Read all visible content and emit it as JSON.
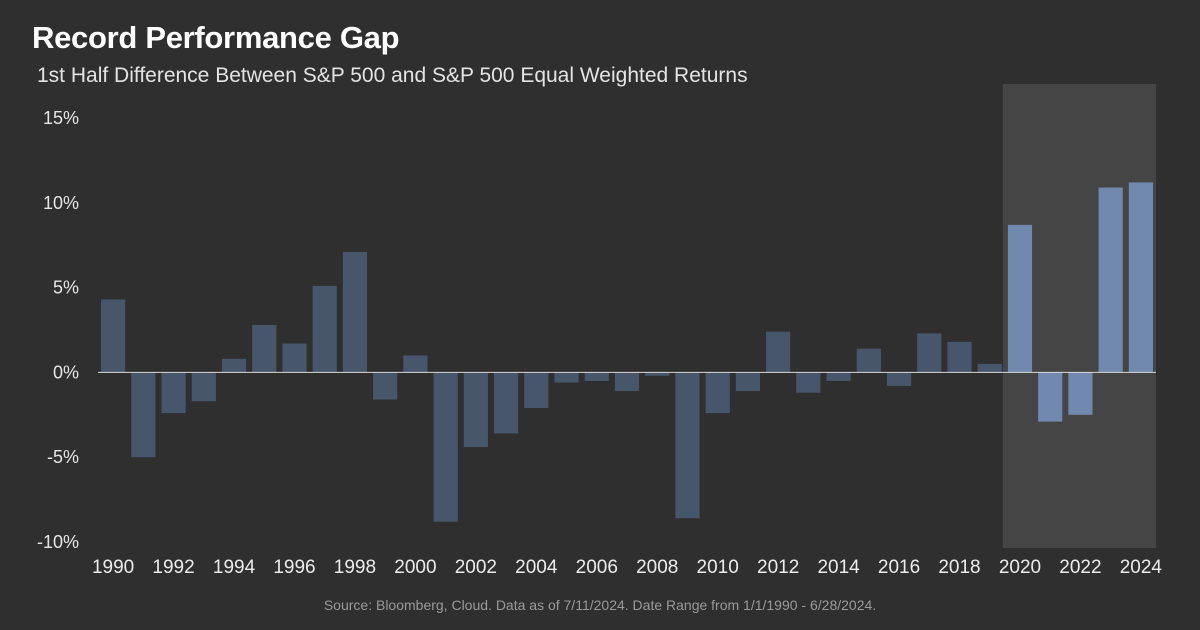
{
  "header": {
    "title": "Record Performance Gap",
    "subtitle": "1st Half Difference Between S&P 500 and S&P 500 Equal Weighted Returns"
  },
  "footer": {
    "source": "Source: Bloomberg, Cloud. Data as of 7/11/2024. Date Range from 1/1/1990 - 6/28/2024."
  },
  "colors": {
    "background": "#2f2f2f",
    "bar_default": "#48566b",
    "bar_highlight": "#7189af",
    "highlight_band": "#454545",
    "zero_line": "#d9d9d9"
  },
  "chart_data": {
    "type": "bar",
    "title": "Record Performance Gap",
    "subtitle": "1st Half Difference Between S&P 500 and S&P 500 Equal Weighted Returns",
    "xlabel": "",
    "ylabel": "",
    "ylim": [
      -10,
      15
    ],
    "y_ticks": [
      15,
      10,
      5,
      0,
      -5,
      -10
    ],
    "y_tick_labels": [
      "15%",
      "10%",
      "5%",
      "0%",
      "-5%",
      "-10%"
    ],
    "x_tick_labels": [
      "1990",
      "1992",
      "1994",
      "1996",
      "1998",
      "2000",
      "2002",
      "2004",
      "2006",
      "2008",
      "2010",
      "2012",
      "2014",
      "2016",
      "2018",
      "2020",
      "2022",
      "2024"
    ],
    "highlight_range": [
      2020,
      2024
    ],
    "grid": false,
    "legend": "none",
    "categories": [
      1990,
      1991,
      1992,
      1993,
      1994,
      1995,
      1996,
      1997,
      1998,
      1999,
      2000,
      2001,
      2002,
      2003,
      2004,
      2005,
      2006,
      2007,
      2008,
      2009,
      2010,
      2011,
      2012,
      2013,
      2014,
      2015,
      2016,
      2017,
      2018,
      2019,
      2020,
      2021,
      2022,
      2023,
      2024
    ],
    "values": [
      4.3,
      -5.0,
      -2.4,
      -1.7,
      0.8,
      2.8,
      1.7,
      5.1,
      7.1,
      -1.6,
      1.0,
      -8.8,
      -4.4,
      -3.6,
      -2.1,
      -0.6,
      -0.5,
      -1.1,
      -0.2,
      -8.6,
      -2.4,
      -1.1,
      2.4,
      -1.2,
      -0.5,
      1.4,
      -0.8,
      2.3,
      1.8,
      0.5,
      8.7,
      -2.9,
      -2.5,
      10.9,
      11.2
    ]
  }
}
